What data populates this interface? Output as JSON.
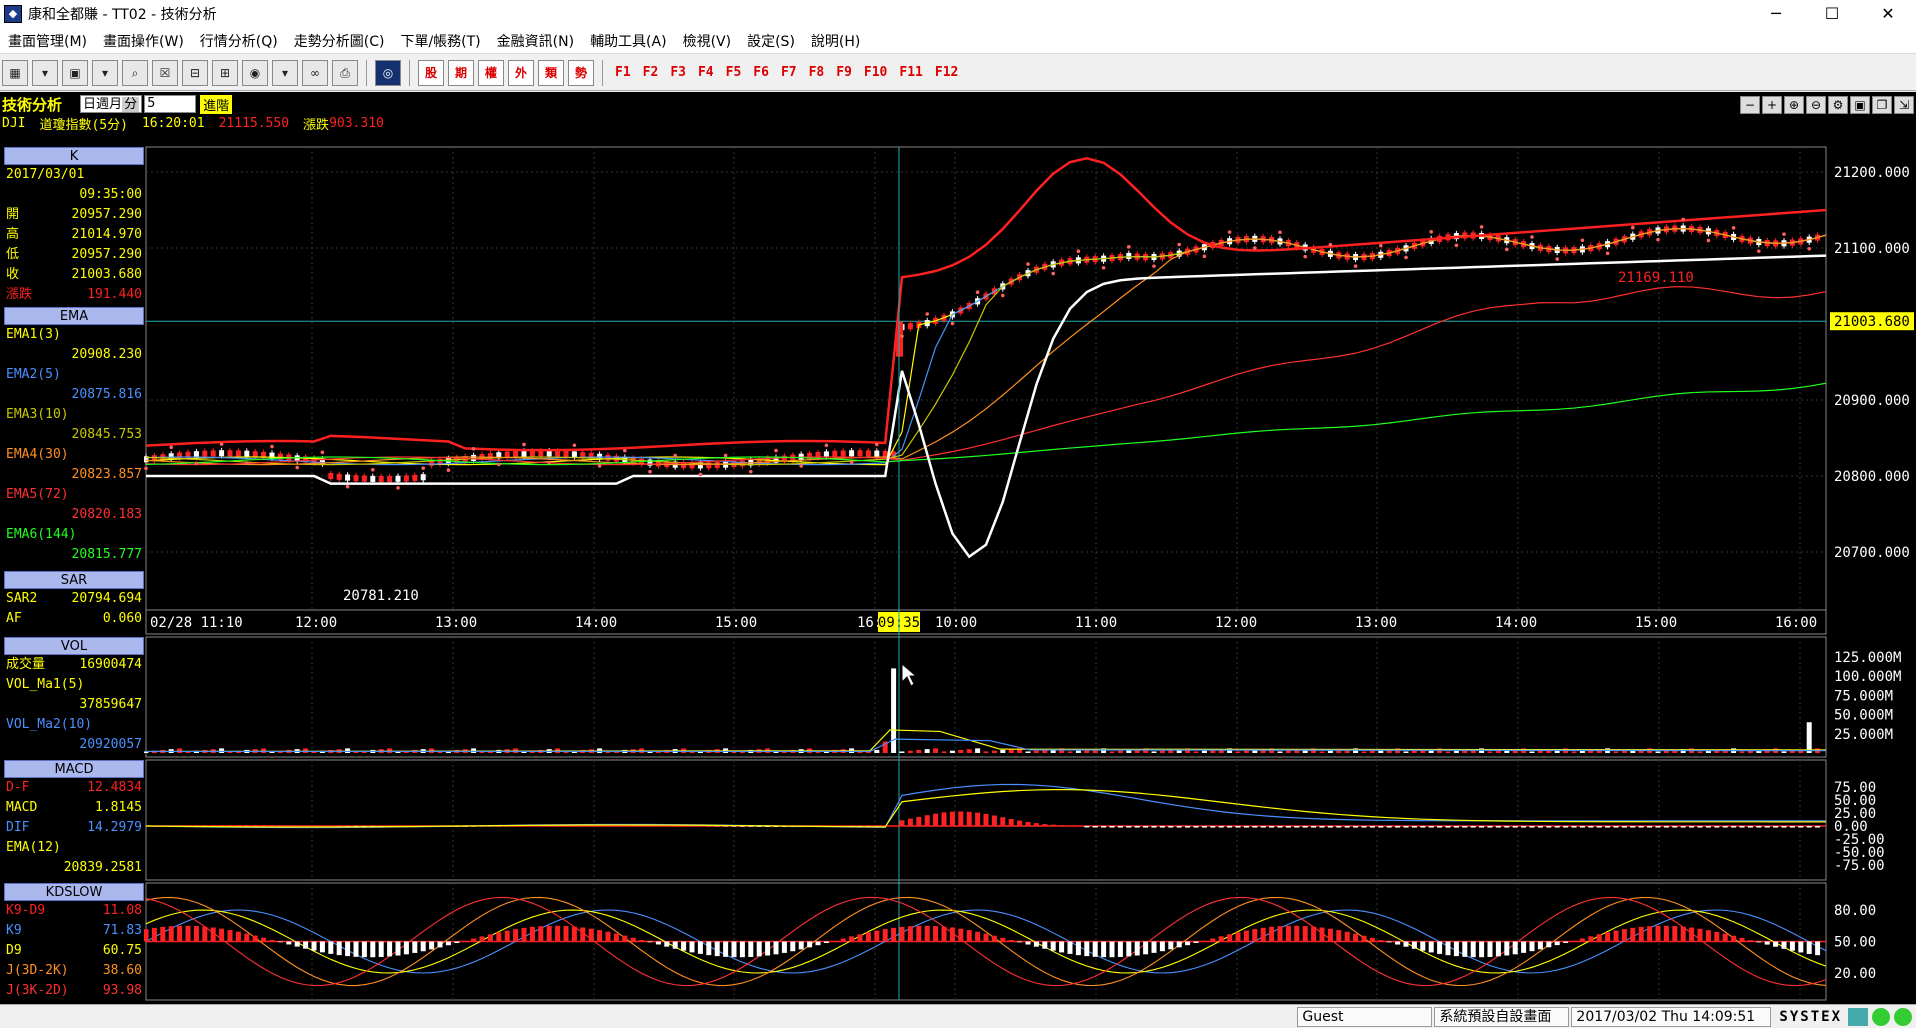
{
  "window": {
    "title": "康和全都賺 - TT02 - 技術分析",
    "minimize": "─",
    "maximize": "☐",
    "close": "✕"
  },
  "menu": [
    "畫面管理(M)",
    "畫面操作(W)",
    "行情分析(Q)",
    "走勢分析圖(C)",
    "下單/帳務(T)",
    "金融資訊(N)",
    "輔助工具(A)",
    "檢視(V)",
    "設定(S)",
    "說明(H)"
  ],
  "toolbar": {
    "quick_buttons": [
      "股",
      "期",
      "權",
      "外",
      "類",
      "勢"
    ],
    "fkeys": [
      "F1",
      "F2",
      "F3",
      "F4",
      "F5",
      "F6",
      "F7",
      "F8",
      "F9",
      "F10",
      "F11",
      "F12"
    ]
  },
  "header": {
    "title": "技術分析",
    "periods": [
      "日",
      "週",
      "月",
      "分"
    ],
    "selected_period": "分",
    "minutes": "5",
    "advanced": "進階",
    "symbol": "DJI",
    "name": "道瓊指數(5分)",
    "time": "16:20:01",
    "price": "21115.550",
    "change_label": "漲跌",
    "change": "903.310"
  },
  "panels": {
    "k": {
      "title": "K",
      "date": "2017/03/01",
      "time": "09:35:00",
      "rows": [
        {
          "label": "開",
          "value": "20957.290",
          "color": "#ffff00"
        },
        {
          "label": "高",
          "value": "21014.970",
          "color": "#ffff00"
        },
        {
          "label": "低",
          "value": "20957.290",
          "color": "#ffff00"
        },
        {
          "label": "收",
          "value": "21003.680",
          "color": "#ffff00"
        },
        {
          "label": "漲跌",
          "value": "191.440",
          "color": "#ff2020"
        }
      ]
    },
    "ema": {
      "title": "EMA",
      "rows": [
        {
          "label": "EMA1(3)",
          "value": "20908.230",
          "color": "#ffff00"
        },
        {
          "label": "EMA2(5)",
          "value": "20875.816",
          "color": "#4a90ff"
        },
        {
          "label": "EMA3(10)",
          "value": "20845.753",
          "color": "#c8c800"
        },
        {
          "label": "EMA4(30)",
          "value": "20823.857",
          "color": "#ff9020"
        },
        {
          "label": "EMA5(72)",
          "value": "20820.183",
          "color": "#ff3030"
        },
        {
          "label": "EMA6(144)",
          "value": "20815.777",
          "color": "#20ff20"
        }
      ]
    },
    "sar": {
      "title": "SAR",
      "rows": [
        {
          "label": "SAR2",
          "value": "20794.694"
        },
        {
          "label": "AF",
          "value": "0.060"
        }
      ]
    },
    "vol": {
      "title": "VOL",
      "rows": [
        {
          "label": "成交量",
          "value": "16900474",
          "color": "#ffff00"
        },
        {
          "label": "VOL_Ma1(5)",
          "value": "37859647",
          "color": "#ffff00"
        },
        {
          "label": "VOL_Ma2(10)",
          "value": "20920057",
          "color": "#4a90ff"
        }
      ]
    },
    "macd": {
      "title": "MACD",
      "rows": [
        {
          "label": "D-F",
          "value": "12.4834",
          "color": "#ff2020"
        },
        {
          "label": "MACD",
          "value": "1.8145",
          "color": "#ffff00"
        },
        {
          "label": "DIF",
          "value": "14.2979",
          "color": "#4a90ff"
        },
        {
          "label": "EMA(12)",
          "value": "20839.2581",
          "color": "#ffff00"
        }
      ]
    },
    "kd": {
      "title": "KDSLOW",
      "rows": [
        {
          "label": "K9-D9",
          "value": "11.08",
          "color": "#ff2020"
        },
        {
          "label": "K9",
          "value": "71.83",
          "color": "#4a90ff"
        },
        {
          "label": "D9",
          "value": "60.75",
          "color": "#ffff00"
        },
        {
          "label": "J(3D-2K)",
          "value": "38.60",
          "color": "#ff9020"
        },
        {
          "label": "J(3K-2D)",
          "value": "93.98",
          "color": "#ff3030"
        }
      ]
    }
  },
  "chart_data": {
    "type": "candlestick",
    "price_axis": {
      "ticks": [
        "21200.000",
        "21100.000",
        "20900.000",
        "20800.000",
        "20700.000"
      ],
      "current": "21003.680",
      "range": [
        20600,
        21260
      ]
    },
    "time_axis": [
      "02/28 11:10",
      "12:00",
      "13:00",
      "14:00",
      "15:00",
      "16:00",
      "09:35",
      "10:00",
      "11:00",
      "12:00",
      "13:00",
      "14:00",
      "15:00",
      "16:00"
    ],
    "annotations": {
      "low": "20781.210",
      "high": "21169.110"
    },
    "volume_axis": [
      "125.000M",
      "100.000M",
      "75.000M",
      "50.000M",
      "25.000M"
    ],
    "macd_axis": [
      "75.00",
      "50.00",
      "25.00",
      "0.00",
      "-25.00",
      "-50.00",
      "-75.00"
    ],
    "kd_axis": [
      "80.00",
      "50.00",
      "20.00"
    ]
  },
  "statusbar": {
    "user": "Guest",
    "layout": "系統預設自設畫面",
    "datetime": "2017/03/02 Thu 14:09:51",
    "brand": "SYSTEX"
  }
}
